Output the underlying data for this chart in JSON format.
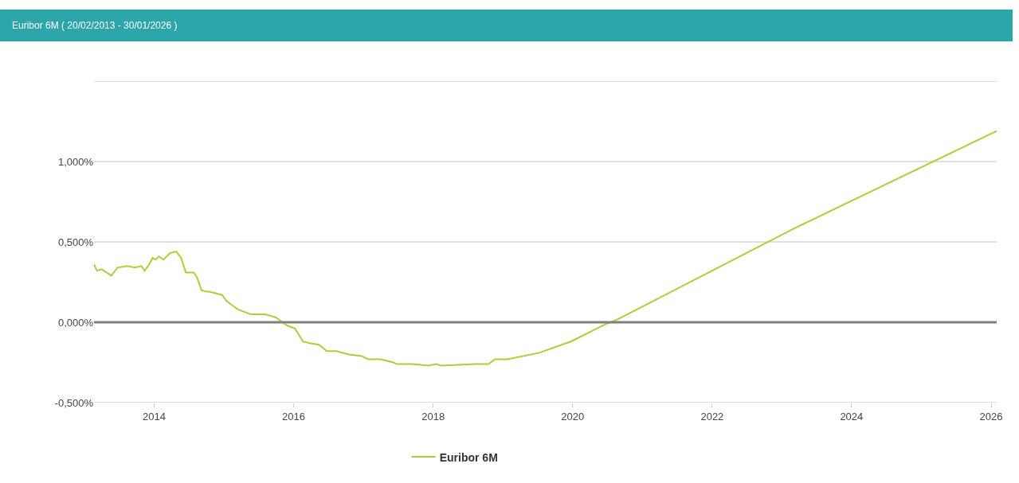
{
  "chart_data": {
    "type": "line",
    "title": "Euribor 6M ( 20/02/2013 - 30/01/2026 )",
    "series": [
      {
        "name": "Euribor 6M",
        "color": "#a9cf3b",
        "x": [
          "2013-02-20",
          "2013-03-08",
          "2013-04-01",
          "2013-05-21",
          "2013-06-23",
          "2013-08-12",
          "2013-09-23",
          "2013-10-26",
          "2013-11-12",
          "2013-12-06",
          "2013-12-23",
          "2014-01-09",
          "2014-01-25",
          "2014-02-19",
          "2014-03-25",
          "2014-04-27",
          "2014-05-22",
          "2014-06-16",
          "2014-07-27",
          "2014-08-13",
          "2014-09-06",
          "2014-10-01",
          "2014-10-18",
          "2014-12-23",
          "2015-01-17",
          "2015-03-16",
          "2015-05-22",
          "2015-08-04",
          "2015-10-01",
          "2015-11-03",
          "2015-11-28",
          "2016-01-09",
          "2016-02-19",
          "2016-03-25",
          "2016-05-13",
          "2016-06-23",
          "2016-08-12",
          "2016-10-18",
          "2016-12-23",
          "2017-01-25",
          "2017-04-01",
          "2017-06-07",
          "2017-06-23",
          "2017-09-15",
          "2017-12-07",
          "2018-01-17",
          "2018-02-11",
          "2018-08-12",
          "2018-10-18",
          "2018-11-20",
          "2019-01-25",
          "2019-07-10",
          "2019-12-23",
          "2020-06-07",
          "2020-08-28",
          "2023-02-28",
          "2026-01-30"
        ],
        "values": [
          0.36,
          0.32,
          0.33,
          0.29,
          0.34,
          0.35,
          0.34,
          0.35,
          0.32,
          0.36,
          0.4,
          0.39,
          0.41,
          0.39,
          0.43,
          0.44,
          0.4,
          0.31,
          0.31,
          0.28,
          0.2,
          0.19,
          0.19,
          0.17,
          0.13,
          0.08,
          0.05,
          0.05,
          0.03,
          0.0,
          -0.02,
          -0.04,
          -0.12,
          -0.13,
          -0.14,
          -0.18,
          -0.18,
          -0.2,
          -0.21,
          -0.23,
          -0.23,
          -0.25,
          -0.26,
          -0.26,
          -0.27,
          -0.26,
          -0.27,
          -0.26,
          -0.26,
          -0.23,
          -0.23,
          -0.19,
          -0.12,
          -0.02,
          0.02,
          0.58,
          1.19
        ]
      }
    ],
    "xlim": [
      "2013-02-20",
      "2026-01-30"
    ],
    "xticks": [
      "2014",
      "2016",
      "2018",
      "2020",
      "2022",
      "2024",
      "2026"
    ],
    "ylim": [
      -0.5,
      1.5
    ],
    "yticks": [
      {
        "value": -0.5,
        "label": "-0,500%"
      },
      {
        "value": 0,
        "label": "0,000%"
      },
      {
        "value": 0.5,
        "label": "0,500%"
      },
      {
        "value": 1,
        "label": "1,000%"
      },
      {
        "value": 1.5,
        "label": null
      }
    ],
    "ref_lines": [
      {
        "axis": "y",
        "value": 0,
        "color": "#7f7f7f"
      }
    ],
    "grid": "y",
    "legend": "bottom",
    "marker": "none",
    "line_style": "solid"
  }
}
